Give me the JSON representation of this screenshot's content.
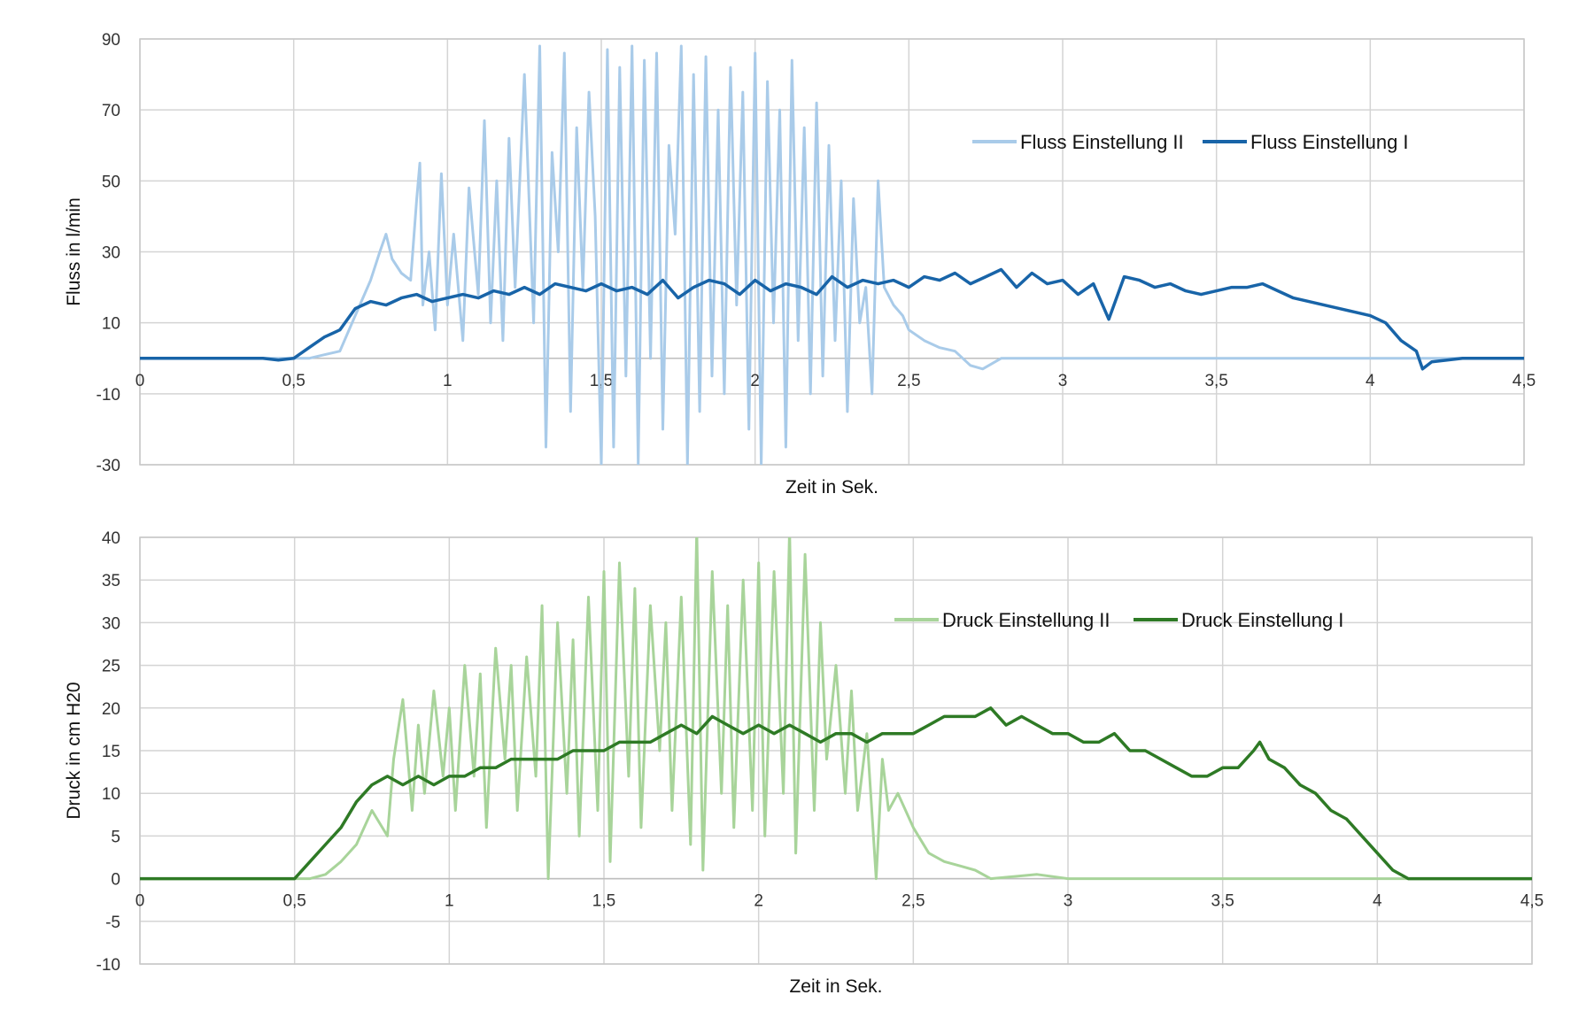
{
  "chart_data": [
    {
      "type": "line",
      "xlabel": "Zeit in Sek.",
      "ylabel": "Fluss in l/min",
      "xlim": [
        0,
        4.5
      ],
      "ylim": [
        -30,
        90
      ],
      "x_ticks": [
        0,
        0.5,
        1,
        1.5,
        2,
        2.5,
        3,
        3.5,
        4,
        4.5
      ],
      "x_tick_labels": [
        "0",
        "0,5",
        "1",
        "1,5",
        "2",
        "2,5",
        "3",
        "3,5",
        "4",
        "4,5"
      ],
      "y_ticks": [
        -30,
        -10,
        10,
        30,
        50,
        70,
        90
      ],
      "y_tick_labels": [
        "-30",
        "-10",
        "10",
        "30",
        "50",
        "70",
        "90"
      ],
      "grid": true,
      "legend_position": "top-right",
      "series": [
        {
          "name": "Fluss Einstellung II",
          "color": "#a9cbe9",
          "x": [
            0,
            0.4,
            0.5,
            0.55,
            0.6,
            0.65,
            0.7,
            0.75,
            0.78,
            0.8,
            0.82,
            0.85,
            0.88,
            0.9,
            0.91,
            0.92,
            0.94,
            0.96,
            0.98,
            1.0,
            1.02,
            1.05,
            1.07,
            1.1,
            1.12,
            1.14,
            1.16,
            1.18,
            1.2,
            1.22,
            1.25,
            1.28,
            1.3,
            1.32,
            1.34,
            1.36,
            1.38,
            1.4,
            1.42,
            1.44,
            1.46,
            1.48,
            1.5,
            1.52,
            1.54,
            1.56,
            1.58,
            1.6,
            1.62,
            1.64,
            1.66,
            1.68,
            1.7,
            1.72,
            1.74,
            1.76,
            1.78,
            1.8,
            1.82,
            1.84,
            1.86,
            1.88,
            1.9,
            1.92,
            1.94,
            1.96,
            1.98,
            2.0,
            2.02,
            2.04,
            2.06,
            2.08,
            2.1,
            2.12,
            2.14,
            2.16,
            2.18,
            2.2,
            2.22,
            2.24,
            2.26,
            2.28,
            2.3,
            2.32,
            2.34,
            2.36,
            2.38,
            2.4,
            2.42,
            2.45,
            2.48,
            2.5,
            2.55,
            2.6,
            2.65,
            2.7,
            2.74,
            2.8,
            2.9,
            3.0,
            3.5,
            4.0,
            4.2,
            4.5
          ],
          "y": [
            0,
            0,
            0,
            0,
            1,
            2,
            12,
            22,
            30,
            35,
            28,
            24,
            22,
            45,
            55,
            15,
            30,
            8,
            52,
            15,
            35,
            5,
            48,
            18,
            67,
            10,
            50,
            5,
            62,
            20,
            80,
            10,
            88,
            -25,
            58,
            30,
            86,
            -15,
            65,
            20,
            75,
            40,
            -30,
            87,
            -25,
            82,
            -5,
            88,
            -30,
            84,
            0,
            86,
            -20,
            60,
            35,
            88,
            -30,
            80,
            -15,
            85,
            -5,
            70,
            -10,
            82,
            15,
            75,
            -20,
            86,
            -30,
            78,
            10,
            70,
            -25,
            84,
            5,
            65,
            -10,
            72,
            -5,
            60,
            5,
            50,
            -15,
            45,
            10,
            20,
            -10,
            50,
            20,
            15,
            12,
            8,
            5,
            3,
            2,
            -2,
            -3,
            0,
            0,
            0,
            0,
            0,
            0,
            0
          ]
        },
        {
          "name": "Fluss Einstellung I",
          "color": "#1864a8",
          "x": [
            0,
            0.3,
            0.4,
            0.45,
            0.5,
            0.55,
            0.6,
            0.65,
            0.7,
            0.75,
            0.8,
            0.85,
            0.9,
            0.95,
            1.0,
            1.05,
            1.1,
            1.15,
            1.2,
            1.25,
            1.3,
            1.35,
            1.4,
            1.45,
            1.5,
            1.55,
            1.6,
            1.65,
            1.7,
            1.75,
            1.8,
            1.85,
            1.9,
            1.95,
            2.0,
            2.05,
            2.1,
            2.15,
            2.2,
            2.25,
            2.3,
            2.35,
            2.4,
            2.45,
            2.5,
            2.55,
            2.6,
            2.65,
            2.7,
            2.75,
            2.8,
            2.85,
            2.9,
            2.95,
            3.0,
            3.05,
            3.1,
            3.15,
            3.2,
            3.25,
            3.3,
            3.35,
            3.4,
            3.45,
            3.5,
            3.55,
            3.6,
            3.65,
            3.7,
            3.75,
            3.8,
            3.85,
            3.9,
            3.95,
            4.0,
            4.05,
            4.1,
            4.15,
            4.17,
            4.2,
            4.3,
            4.5
          ],
          "y": [
            0,
            0,
            0,
            -0.5,
            0,
            3,
            6,
            8,
            14,
            16,
            15,
            17,
            18,
            16,
            17,
            18,
            17,
            19,
            18,
            20,
            18,
            21,
            20,
            19,
            21,
            19,
            20,
            18,
            22,
            17,
            20,
            22,
            21,
            18,
            22,
            19,
            21,
            20,
            18,
            23,
            20,
            22,
            21,
            22,
            20,
            23,
            22,
            24,
            21,
            23,
            25,
            20,
            24,
            21,
            22,
            18,
            21,
            11,
            23,
            22,
            20,
            21,
            19,
            18,
            19,
            20,
            20,
            21,
            19,
            17,
            16,
            15,
            14,
            13,
            12,
            10,
            5,
            2,
            -3,
            -1,
            0,
            0
          ]
        }
      ]
    },
    {
      "type": "line",
      "xlabel": "Zeit in Sek.",
      "ylabel": "Druck in cm H20",
      "xlim": [
        0,
        4.5
      ],
      "ylim": [
        -10,
        40
      ],
      "x_ticks": [
        0,
        0.5,
        1,
        1.5,
        2,
        2.5,
        3,
        3.5,
        4,
        4.5
      ],
      "x_tick_labels": [
        "0",
        "0,5",
        "1",
        "1,5",
        "2",
        "2,5",
        "3",
        "3,5",
        "4",
        "4,5"
      ],
      "y_ticks": [
        -10,
        -5,
        0,
        5,
        10,
        15,
        20,
        25,
        30,
        35,
        40
      ],
      "y_tick_labels": [
        "-10",
        "-5",
        "0",
        "5",
        "10",
        "15",
        "20",
        "25",
        "30",
        "35",
        "40"
      ],
      "grid": true,
      "legend_position": "top-right",
      "series": [
        {
          "name": "Druck Einstellung II",
          "color": "#a8d49a",
          "x": [
            0,
            0.5,
            0.55,
            0.6,
            0.65,
            0.7,
            0.75,
            0.8,
            0.82,
            0.85,
            0.88,
            0.9,
            0.92,
            0.95,
            0.98,
            1.0,
            1.02,
            1.05,
            1.08,
            1.1,
            1.12,
            1.15,
            1.18,
            1.2,
            1.22,
            1.25,
            1.28,
            1.3,
            1.32,
            1.35,
            1.38,
            1.4,
            1.42,
            1.45,
            1.48,
            1.5,
            1.52,
            1.55,
            1.58,
            1.6,
            1.62,
            1.65,
            1.68,
            1.7,
            1.72,
            1.75,
            1.78,
            1.8,
            1.82,
            1.85,
            1.88,
            1.9,
            1.92,
            1.95,
            1.98,
            2.0,
            2.02,
            2.05,
            2.08,
            2.1,
            2.12,
            2.15,
            2.18,
            2.2,
            2.22,
            2.25,
            2.28,
            2.3,
            2.32,
            2.35,
            2.38,
            2.4,
            2.42,
            2.45,
            2.5,
            2.55,
            2.6,
            2.65,
            2.7,
            2.75,
            2.9,
            3.0,
            3.5,
            4.0,
            4.5
          ],
          "y": [
            0,
            0,
            0,
            0.5,
            2,
            4,
            8,
            5,
            14,
            21,
            8,
            18,
            10,
            22,
            12,
            20,
            8,
            25,
            12,
            24,
            6,
            27,
            14,
            25,
            8,
            26,
            12,
            32,
            0,
            30,
            10,
            28,
            5,
            33,
            8,
            36,
            2,
            37,
            12,
            34,
            6,
            32,
            15,
            30,
            8,
            33,
            4,
            41,
            1,
            36,
            10,
            32,
            6,
            35,
            8,
            37,
            5,
            36,
            10,
            41,
            3,
            38,
            8,
            30,
            14,
            25,
            10,
            22,
            8,
            17,
            0,
            14,
            8,
            10,
            6,
            3,
            2,
            1.5,
            1,
            0,
            0.5,
            0,
            0,
            0,
            0
          ]
        },
        {
          "name": "Druck Einstellung I",
          "color": "#2e7a25",
          "x": [
            0,
            0.4,
            0.45,
            0.5,
            0.55,
            0.6,
            0.65,
            0.7,
            0.75,
            0.8,
            0.85,
            0.9,
            0.95,
            1.0,
            1.05,
            1.1,
            1.15,
            1.2,
            1.25,
            1.3,
            1.35,
            1.4,
            1.45,
            1.5,
            1.55,
            1.6,
            1.65,
            1.7,
            1.75,
            1.8,
            1.85,
            1.9,
            1.95,
            2.0,
            2.05,
            2.1,
            2.15,
            2.2,
            2.25,
            2.3,
            2.35,
            2.4,
            2.45,
            2.5,
            2.55,
            2.6,
            2.65,
            2.7,
            2.75,
            2.8,
            2.85,
            2.9,
            2.95,
            3.0,
            3.05,
            3.1,
            3.15,
            3.2,
            3.25,
            3.3,
            3.35,
            3.4,
            3.45,
            3.5,
            3.55,
            3.6,
            3.62,
            3.65,
            3.7,
            3.75,
            3.8,
            3.85,
            3.9,
            3.95,
            4.0,
            4.05,
            4.1,
            4.15,
            4.2,
            4.3,
            4.5
          ],
          "y": [
            0,
            0,
            0,
            0,
            2,
            4,
            6,
            9,
            11,
            12,
            11,
            12,
            11,
            12,
            12,
            13,
            13,
            14,
            14,
            14,
            14,
            15,
            15,
            15,
            16,
            16,
            16,
            17,
            18,
            17,
            19,
            18,
            17,
            18,
            17,
            18,
            17,
            16,
            17,
            17,
            16,
            17,
            17,
            17,
            18,
            19,
            19,
            19,
            20,
            18,
            19,
            18,
            17,
            17,
            16,
            16,
            17,
            15,
            15,
            14,
            13,
            12,
            12,
            13,
            13,
            15,
            16,
            14,
            13,
            11,
            10,
            8,
            7,
            5,
            3,
            1,
            0,
            0,
            0,
            0,
            0
          ]
        }
      ]
    }
  ]
}
